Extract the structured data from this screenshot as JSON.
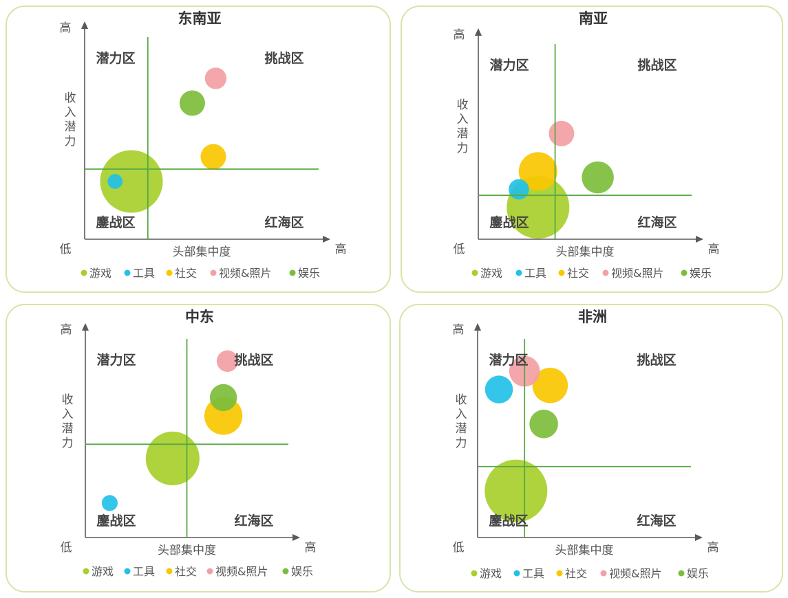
{
  "zones": {
    "top_left": "潜力区",
    "top_right": "挑战区",
    "bottom_left": "鏖战区",
    "bottom_right": "红海区"
  },
  "axis_labels": {
    "high": "高",
    "low": "低",
    "x_axis": "头部集中度",
    "y_axis": [
      "收",
      "入",
      "潜",
      "力"
    ]
  },
  "legend": [
    {
      "label": "游戏",
      "color": "#a8cf2b"
    },
    {
      "label": "工具",
      "color": "#23c0e8"
    },
    {
      "label": "社交",
      "color": "#f9c700"
    },
    {
      "label": "视频&照片",
      "color": "#f2a0a4"
    },
    {
      "label": "娱乐",
      "color": "#7dbd3c"
    }
  ],
  "chart_data": [
    {
      "type": "scatter",
      "title": "东南亚",
      "xlabel": "头部集中度",
      "ylabel": "收入潜力",
      "xlim": [
        0,
        10
      ],
      "ylim": [
        0,
        10
      ],
      "divider": {
        "x": 2.7,
        "y": 3.4
      },
      "points": [
        {
          "category": "游戏",
          "x": 2.0,
          "y": 2.8,
          "size": 10
        },
        {
          "category": "工具",
          "x": 1.3,
          "y": 2.8,
          "size": 0.15
        },
        {
          "category": "社交",
          "x": 5.5,
          "y": 4.0,
          "size": 1.0
        },
        {
          "category": "视频&照片",
          "x": 5.6,
          "y": 7.8,
          "size": 0.6
        },
        {
          "category": "娱乐",
          "x": 4.6,
          "y": 6.6,
          "size": 1.0
        }
      ]
    },
    {
      "type": "scatter",
      "title": "南亚",
      "xlabel": "头部集中度",
      "ylabel": "收入潜力",
      "xlim": [
        0,
        10
      ],
      "ylim": [
        0,
        10
      ],
      "divider": {
        "x": 3.6,
        "y": 2.2
      },
      "points": [
        {
          "category": "游戏",
          "x": 2.8,
          "y": 1.6,
          "size": 10
        },
        {
          "category": "工具",
          "x": 1.9,
          "y": 2.5,
          "size": 0.5
        },
        {
          "category": "社交",
          "x": 2.8,
          "y": 3.4,
          "size": 3.1
        },
        {
          "category": "视频&照片",
          "x": 3.9,
          "y": 5.3,
          "size": 1.0
        },
        {
          "category": "娱乐",
          "x": 5.6,
          "y": 3.1,
          "size": 1.9
        }
      ]
    },
    {
      "type": "scatter",
      "title": "中东",
      "xlabel": "头部集中度",
      "ylabel": "收入潜力",
      "xlim": [
        0,
        10
      ],
      "ylim": [
        0,
        10
      ],
      "divider": {
        "x": 5.0,
        "y": 4.6
      },
      "points": [
        {
          "category": "游戏",
          "x": 4.3,
          "y": 3.9,
          "size": 7.0
        },
        {
          "category": "工具",
          "x": 1.2,
          "y": 1.7,
          "size": 0.2
        },
        {
          "category": "社交",
          "x": 6.8,
          "y": 6.0,
          "size": 3.0
        },
        {
          "category": "视频&照片",
          "x": 7.0,
          "y": 8.7,
          "size": 0.6
        },
        {
          "category": "娱乐",
          "x": 6.8,
          "y": 6.9,
          "size": 1.2
        }
      ]
    },
    {
      "type": "scatter",
      "title": "非洲",
      "xlabel": "头部集中度",
      "ylabel": "收入潜力",
      "xlim": [
        0,
        10
      ],
      "ylim": [
        0,
        10
      ],
      "divider": {
        "x": 2.2,
        "y": 3.5
      },
      "points": [
        {
          "category": "游戏",
          "x": 1.8,
          "y": 2.3,
          "size": 10
        },
        {
          "category": "工具",
          "x": 1.0,
          "y": 7.3,
          "size": 1.3
        },
        {
          "category": "社交",
          "x": 3.4,
          "y": 7.5,
          "size": 2.5
        },
        {
          "category": "视频&照片",
          "x": 2.2,
          "y": 8.2,
          "size": 1.7
        },
        {
          "category": "娱乐",
          "x": 3.1,
          "y": 5.6,
          "size": 1.4
        }
      ]
    }
  ]
}
